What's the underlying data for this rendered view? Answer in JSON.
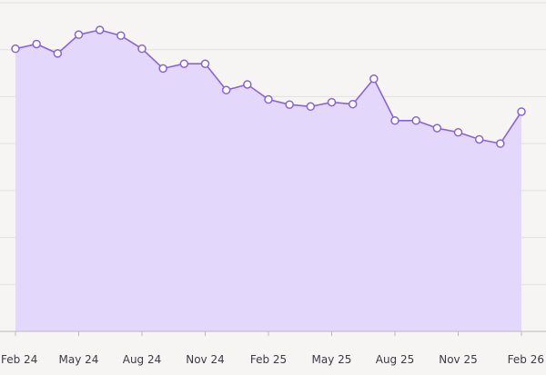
{
  "chart_data": {
    "type": "area",
    "title": "",
    "xlabel": "",
    "ylabel": "",
    "x_ticks": [
      "Feb 24",
      "May 24",
      "Aug 24",
      "Nov 24",
      "Feb 25",
      "May 25",
      "Aug 25",
      "Nov 25",
      "Feb 26"
    ],
    "ylim": [
      0,
      7
    ],
    "grid": true,
    "series": [
      {
        "x": [
          "2024-02",
          "2024-03",
          "2024-04",
          "2024-05",
          "2024-06",
          "2024-07",
          "2024-08",
          "2024-09",
          "2024-10",
          "2024-11",
          "2024-12",
          "2025-01",
          "2025-02",
          "2025-03",
          "2025-04",
          "2025-05",
          "2025-06",
          "2025-07",
          "2025-08",
          "2025-09",
          "2025-10",
          "2025-11",
          "2025-12",
          "2026-01",
          "2026-02"
        ],
        "values": [
          6.02,
          6.12,
          5.92,
          6.32,
          6.42,
          6.3,
          6.02,
          5.6,
          5.7,
          5.7,
          5.14,
          5.26,
          4.94,
          4.83,
          4.79,
          4.88,
          4.84,
          5.38,
          4.49,
          4.49,
          4.33,
          4.24,
          4.09,
          4.0,
          4.68
        ]
      }
    ],
    "colors": {
      "line": "#8a63d2",
      "fill": "#e3d7fb",
      "point_fill": "#ffffff",
      "grid": "#e2e0dc",
      "axis": "#bdbab6"
    }
  }
}
